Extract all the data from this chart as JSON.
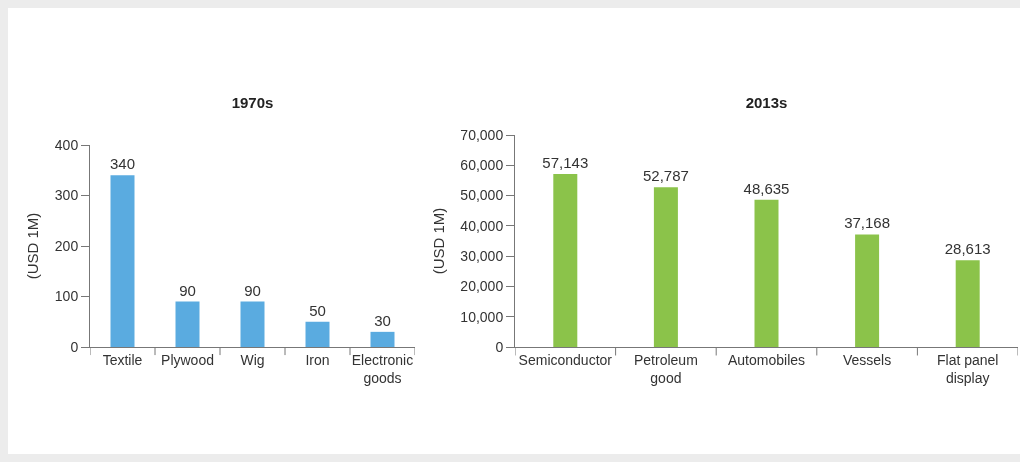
{
  "chart_data": [
    {
      "type": "bar",
      "title": "1970s",
      "ylabel": "(USD 1M)",
      "categories": [
        "Textile",
        "Plywood",
        "Wig",
        "Iron",
        "Electronic goods"
      ],
      "values": [
        340,
        90,
        90,
        50,
        30
      ],
      "color": "#5aabe0",
      "ylim": [
        0,
        400
      ],
      "yticks": [
        0,
        100,
        200,
        300,
        400
      ],
      "data_labels": true,
      "grid": false
    },
    {
      "type": "bar",
      "title": "2013s",
      "ylabel": "(USD 1M)",
      "categories": [
        "Semiconductor",
        "Petroleum good",
        "Automobiles",
        "Vessels",
        "Flat panel display"
      ],
      "values": [
        57143,
        52787,
        48635,
        37168,
        28613
      ],
      "value_labels": [
        "57,143",
        "52,787",
        "48,635",
        "37,168",
        "28,613"
      ],
      "color": "#8bc34a",
      "ylim": [
        0,
        70000
      ],
      "yticks": [
        0,
        {
          "value": 10000,
          "label": "10,000"
        },
        {
          "value": 20000,
          "label": "20,000"
        },
        {
          "value": 30000,
          "label": "30,000"
        },
        {
          "value": 40000,
          "label": "40,000"
        },
        {
          "value": 50000,
          "label": "50,000"
        },
        {
          "value": 60000,
          "label": "60,000"
        },
        {
          "value": 70000,
          "label": "70,000"
        }
      ],
      "grid": false
    }
  ]
}
